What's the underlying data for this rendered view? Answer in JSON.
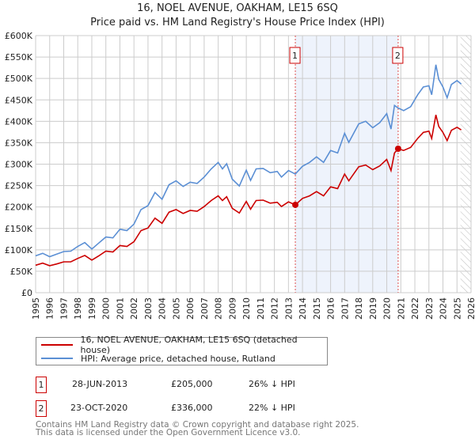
{
  "chart_data": {
    "type": "line",
    "title": "16, NOEL AVENUE, OAKHAM, LE15 6SQ",
    "subtitle": "Price paid vs. HM Land Registry's House Price Index (HPI)",
    "xlim": [
      1995,
      2026
    ],
    "ylim": [
      0,
      600000
    ],
    "x_ticks": [
      "1995",
      "1996",
      "1997",
      "1998",
      "1999",
      "2000",
      "2001",
      "2002",
      "2003",
      "2004",
      "2005",
      "2006",
      "2007",
      "2008",
      "2009",
      "2010",
      "2011",
      "2012",
      "2013",
      "2014",
      "2015",
      "2016",
      "2017",
      "2018",
      "2019",
      "2020",
      "2021",
      "2022",
      "2023",
      "2024",
      "2025",
      "2026"
    ],
    "y_ticks": [
      "£0",
      "£50K",
      "£100K",
      "£150K",
      "£200K",
      "£250K",
      "£300K",
      "£350K",
      "£400K",
      "£450K",
      "£500K",
      "£550K",
      "£600K"
    ],
    "grid": true,
    "x": [
      1995.0,
      1995.5,
      1996.0,
      1996.5,
      1997.0,
      1997.5,
      1998.0,
      1998.5,
      1999.0,
      1999.5,
      2000.0,
      2000.5,
      2001.0,
      2001.5,
      2002.0,
      2002.5,
      2003.0,
      2003.5,
      2004.0,
      2004.5,
      2005.0,
      2005.5,
      2006.0,
      2006.5,
      2007.0,
      2007.5,
      2008.0,
      2008.3,
      2008.6,
      2009.0,
      2009.5,
      2010.0,
      2010.3,
      2010.7,
      2011.2,
      2011.7,
      2012.2,
      2012.5,
      2013.0,
      2013.49,
      2014.0,
      2014.5,
      2015.0,
      2015.5,
      2016.0,
      2016.5,
      2017.0,
      2017.3,
      2018.0,
      2018.5,
      2019.0,
      2019.5,
      2020.0,
      2020.3,
      2020.55,
      2020.81,
      2021.2,
      2021.7,
      2022.2,
      2022.6,
      2023.0,
      2023.2,
      2023.5,
      2023.7,
      2024.0,
      2024.3,
      2024.6,
      2025.0,
      2025.3
    ],
    "series": [
      {
        "name": "16, NOEL AVENUE, OAKHAM, LE15 6SQ (detached house)",
        "color": "#cc0000",
        "values": [
          64000,
          69000,
          63000,
          67000,
          72000,
          72000,
          80000,
          87000,
          76000,
          86000,
          97000,
          95000,
          110000,
          108000,
          119000,
          145000,
          151000,
          174000,
          162000,
          188000,
          194000,
          185000,
          192000,
          190000,
          201000,
          215000,
          226000,
          215000,
          224000,
          197000,
          186000,
          213000,
          195000,
          215000,
          216000,
          209000,
          211000,
          201000,
          212000,
          205000,
          220000,
          226000,
          236000,
          226000,
          247000,
          243000,
          277000,
          261000,
          294000,
          298000,
          287000,
          296000,
          311000,
          285000,
          326000,
          336000,
          332000,
          339000,
          360000,
          374000,
          377000,
          360000,
          415000,
          388000,
          374000,
          355000,
          379000,
          386000,
          380000
        ]
      },
      {
        "name": "HPI: Average price, detached house, Rutland",
        "color": "#5b8fd4",
        "values": [
          86000,
          92000,
          84000,
          90000,
          96000,
          97000,
          108000,
          117000,
          102000,
          116000,
          130000,
          128000,
          148000,
          145000,
          160000,
          194000,
          203000,
          234000,
          218000,
          252000,
          261000,
          248000,
          258000,
          255000,
          270000,
          289000,
          304000,
          289000,
          301000,
          265000,
          249000,
          286000,
          262000,
          289000,
          290000,
          280000,
          283000,
          270000,
          285000,
          277000,
          295000,
          304000,
          317000,
          304000,
          332000,
          326000,
          372000,
          351000,
          394000,
          400000,
          385000,
          397000,
          418000,
          382000,
          437000,
          431000,
          425000,
          434000,
          462000,
          480000,
          483000,
          462000,
          532000,
          498000,
          480000,
          455000,
          486000,
          495000,
          487000
        ]
      }
    ],
    "sales": [
      {
        "label": "1",
        "x": 2013.49,
        "price": 205000
      },
      {
        "label": "2",
        "x": 2020.81,
        "price": 336000
      }
    ],
    "shaded_range": [
      2013.49,
      2020.81
    ],
    "forecast_hatch_from": 2025.25,
    "legend_position": "below"
  },
  "legend": {
    "red": "16, NOEL AVENUE, OAKHAM, LE15 6SQ (detached house)",
    "blue": "HPI: Average price, detached house, Rutland"
  },
  "transactions": [
    {
      "num": "1",
      "date": "28-JUN-2013",
      "price": "£205,000",
      "hpi": "26% ↓ HPI"
    },
    {
      "num": "2",
      "date": "23-OCT-2020",
      "price": "£336,000",
      "hpi": "22% ↓ HPI"
    }
  ],
  "footer": {
    "line1": "Contains HM Land Registry data © Crown copyright and database right 2025.",
    "line2": "This data is licensed under the Open Government Licence v3.0."
  }
}
